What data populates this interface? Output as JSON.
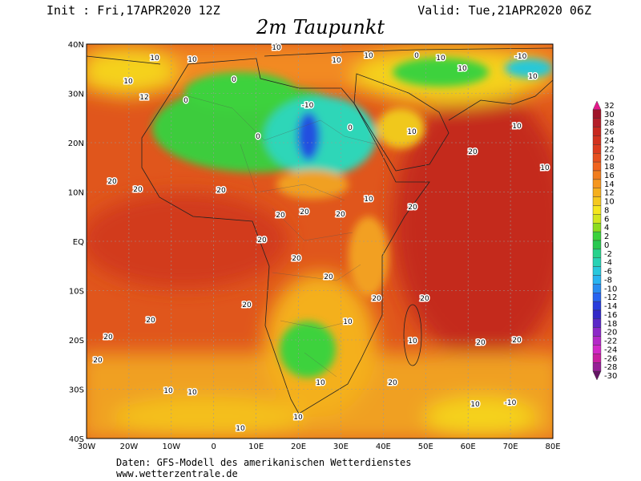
{
  "header": {
    "init": "Init : Fri,17APR2020 12Z",
    "valid": "Valid: Tue,21APR2020 06Z",
    "title": "2m Taupunkt"
  },
  "axes": {
    "lon_labels": [
      "30W",
      "20W",
      "10W",
      "0",
      "10E",
      "20E",
      "30E",
      "40E",
      "50E",
      "60E",
      "70E",
      "80E"
    ],
    "lat_labels": [
      "40N",
      "30N",
      "20N",
      "10N",
      "EQ",
      "10S",
      "20S",
      "30S",
      "40S"
    ]
  },
  "colorbar": {
    "labels": [
      "32",
      "30",
      "28",
      "26",
      "24",
      "22",
      "20",
      "18",
      "16",
      "14",
      "12",
      "10",
      "8",
      "6",
      "4",
      "2",
      "0",
      "-2",
      "-4",
      "-6",
      "-8",
      "-10",
      "-12",
      "-14",
      "-16",
      "-18",
      "-20",
      "-22",
      "-24",
      "-26",
      "-28",
      "-30"
    ]
  },
  "contour_labels": [
    "10",
    "10",
    "0",
    "10",
    "10",
    "10",
    "0",
    "10",
    "10",
    "-10",
    "10",
    "10",
    "12",
    "0",
    "-10",
    "0",
    "0",
    "10",
    "20",
    "10",
    "10",
    "20",
    "20",
    "20",
    "10",
    "20",
    "20",
    "20",
    "20",
    "20",
    "20",
    "20",
    "20",
    "20",
    "20",
    "20",
    "20",
    "20",
    "10",
    "10",
    "20",
    "20",
    "10",
    "10",
    "10",
    "20",
    "10",
    "-10",
    "10",
    "10"
  ],
  "footer": {
    "line1": "Daten: GFS-Modell des amerikanischen Wetterdienstes",
    "line2": "www.wetterzentrale.de"
  }
}
